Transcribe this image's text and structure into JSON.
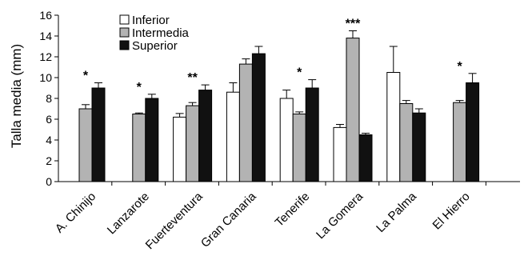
{
  "chart_data": {
    "type": "bar",
    "ylabel": "Talla media (mm)",
    "xlabel": "",
    "ylim": [
      0,
      16
    ],
    "yticks": [
      0,
      2,
      4,
      6,
      8,
      10,
      12,
      14,
      16
    ],
    "grid": false,
    "legend_position": "top-left",
    "categories": [
      "A. Chinijo",
      "Lanzarote",
      "Fuerteventura",
      "Gran Canaria",
      "Tenerife",
      "La Gomera",
      "La Palma",
      "El Hierro"
    ],
    "series": [
      {
        "name": "Inferior",
        "color": "#ffffff",
        "values": [
          null,
          null,
          6.2,
          8.6,
          8.0,
          5.2,
          10.5,
          null
        ],
        "errors": [
          null,
          null,
          0.35,
          0.9,
          0.8,
          0.3,
          2.5,
          null
        ]
      },
      {
        "name": "Intermedia",
        "color": "#b3b3b3",
        "values": [
          7.0,
          6.5,
          7.3,
          11.3,
          6.5,
          13.8,
          7.5,
          7.6
        ],
        "errors": [
          0.4,
          0.1,
          0.3,
          0.5,
          0.2,
          0.7,
          0.3,
          0.2
        ]
      },
      {
        "name": "Superior",
        "color": "#111111",
        "values": [
          9.0,
          8.0,
          8.8,
          12.3,
          9.0,
          4.5,
          6.6,
          9.5
        ],
        "errors": [
          0.5,
          0.4,
          0.5,
          0.7,
          0.8,
          0.15,
          0.4,
          0.9
        ]
      }
    ],
    "annotations": [
      {
        "category": "A. Chinijo",
        "text": "*"
      },
      {
        "category": "Lanzarote",
        "text": "*"
      },
      {
        "category": "Fuerteventura",
        "text": "**"
      },
      {
        "category": "Tenerife",
        "text": "*"
      },
      {
        "category": "La Gomera",
        "text": "***"
      },
      {
        "category": "El Hierro",
        "text": "*"
      }
    ]
  }
}
